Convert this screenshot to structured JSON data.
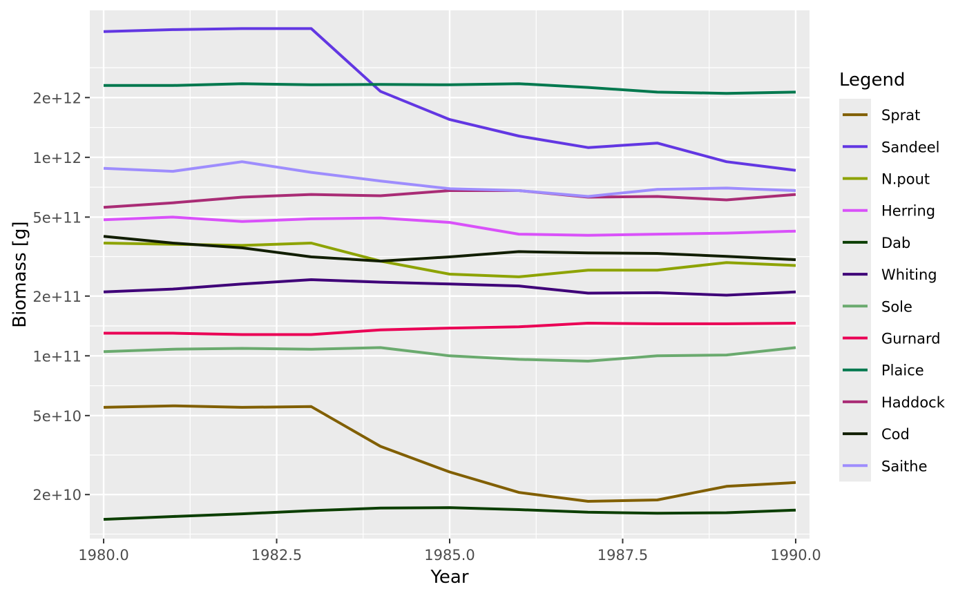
{
  "chart_data": {
    "type": "line",
    "xlabel": "Year",
    "ylabel": "Biomass [g]",
    "y_scale": "log10",
    "xlim": [
      1979.8,
      1990.2
    ],
    "ylim": [
      12000000000.0,
      5500000000000.0
    ],
    "x_ticks": [
      1980,
      1982.5,
      1985,
      1987.5,
      1990
    ],
    "x_tick_labels": [
      "1980.0",
      "1982.5",
      "1985.0",
      "1987.5",
      "1990.0"
    ],
    "y_ticks": [
      20000000000.0,
      50000000000.0,
      100000000000.0,
      200000000000.0,
      500000000000.0,
      1000000000000.0,
      2000000000000.0
    ],
    "y_tick_labels": [
      "2e+10",
      "5e+10",
      "1e+11",
      "2e+11",
      "5e+11",
      "1e+12",
      "2e+12"
    ],
    "legend_title": "Legend",
    "legend_position": "right",
    "grid": true,
    "panel_background": "#ebebeb",
    "x": [
      1980,
      1981,
      1982,
      1983,
      1984,
      1985,
      1986,
      1987,
      1988,
      1989,
      1990
    ],
    "series": [
      {
        "name": "Sprat",
        "color": "#815f00",
        "values": [
          55000000000.0,
          56000000000.0,
          55000000000.0,
          55500000000.0,
          35000000000.0,
          26000000000.0,
          20500000000.0,
          18500000000.0,
          18800000000.0,
          22000000000.0,
          23000000000.0
        ]
      },
      {
        "name": "Sandeel",
        "color": "#6237e2",
        "values": [
          4300000000000.0,
          4400000000000.0,
          4450000000000.0,
          4450000000000.0,
          2150000000000.0,
          1550000000000.0,
          1280000000000.0,
          1120000000000.0,
          1180000000000.0,
          950000000000.0,
          860000000000.0
        ]
      },
      {
        "name": "N.pout",
        "color": "#8da300",
        "values": [
          370000000000.0,
          365000000000.0,
          360000000000.0,
          370000000000.0,
          300000000000.0,
          258000000000.0,
          250000000000.0,
          270000000000.0,
          270000000000.0,
          295000000000.0,
          285000000000.0
        ]
      },
      {
        "name": "Herring",
        "color": "#d951f9",
        "values": [
          485000000000.0,
          500000000000.0,
          475000000000.0,
          490000000000.0,
          495000000000.0,
          470000000000.0,
          410000000000.0,
          405000000000.0,
          410000000000.0,
          415000000000.0,
          425000000000.0
        ]
      },
      {
        "name": "Dab",
        "color": "#0b3e00",
        "values": [
          15000000000.0,
          15500000000.0,
          16000000000.0,
          16600000000.0,
          17100000000.0,
          17200000000.0,
          16800000000.0,
          16300000000.0,
          16100000000.0,
          16200000000.0,
          16700000000.0
        ]
      },
      {
        "name": "Whiting",
        "color": "#3f0078",
        "values": [
          210000000000.0,
          217000000000.0,
          230000000000.0,
          242000000000.0,
          235000000000.0,
          230000000000.0,
          225000000000.0,
          207000000000.0,
          208000000000.0,
          202000000000.0,
          210000000000.0
        ]
      },
      {
        "name": "Sole",
        "color": "#6aaa6e",
        "values": [
          105000000000.0,
          108000000000.0,
          109000000000.0,
          108000000000.0,
          110000000000.0,
          100000000000.0,
          96000000000.0,
          94000000000.0,
          100000000000.0,
          101000000000.0,
          110000000000.0
        ]
      },
      {
        "name": "Gurnard",
        "color": "#ea0055",
        "values": [
          130000000000.0,
          130000000000.0,
          128000000000.0,
          128000000000.0,
          135000000000.0,
          138000000000.0,
          140000000000.0,
          146000000000.0,
          145000000000.0,
          145000000000.0,
          146000000000.0
        ]
      },
      {
        "name": "Plaice",
        "color": "#00784e",
        "values": [
          2300000000000.0,
          2300000000000.0,
          2350000000000.0,
          2320000000000.0,
          2330000000000.0,
          2320000000000.0,
          2350000000000.0,
          2250000000000.0,
          2130000000000.0,
          2100000000000.0,
          2130000000000.0
        ]
      },
      {
        "name": "Haddock",
        "color": "#a92c75",
        "values": [
          560000000000.0,
          590000000000.0,
          630000000000.0,
          650000000000.0,
          640000000000.0,
          680000000000.0,
          680000000000.0,
          630000000000.0,
          635000000000.0,
          610000000000.0,
          650000000000.0
        ]
      },
      {
        "name": "Cod",
        "color": "#111e00",
        "values": [
          400000000000.0,
          370000000000.0,
          350000000000.0,
          315000000000.0,
          300000000000.0,
          315000000000.0,
          335000000000.0,
          330000000000.0,
          328000000000.0,
          317000000000.0,
          305000000000.0
        ]
      },
      {
        "name": "Saithe",
        "color": "#9e8dfd",
        "values": [
          880000000000.0,
          850000000000.0,
          950000000000.0,
          840000000000.0,
          760000000000.0,
          695000000000.0,
          680000000000.0,
          635000000000.0,
          690000000000.0,
          700000000000.0,
          680000000000.0
        ]
      }
    ]
  }
}
